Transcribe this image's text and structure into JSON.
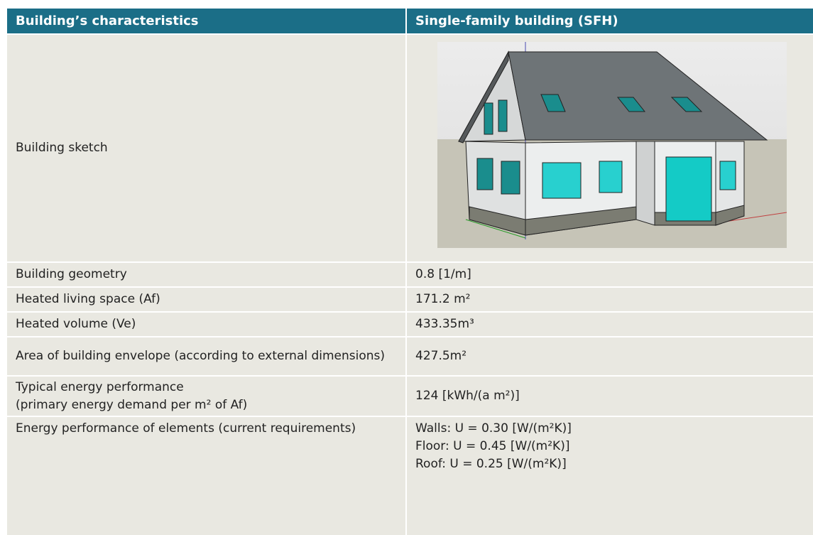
{
  "header": [
    "Building’s characteristics",
    "Single-family building (SFH)"
  ],
  "rows": [
    {
      "label": "Building sketch"
    },
    {
      "label": "Building geometry",
      "value": "0.8 [1/m]"
    },
    {
      "label": "Heated living space (Af)",
      "value": "171.2 m²"
    },
    {
      "label": "Heated volume (Ve)",
      "value": "433.35m³"
    },
    {
      "label": "Area of building envelope (according to external dimensions)",
      "value": "427.5m²"
    },
    {
      "label": [
        "Typical energy performance",
        "(primary energy demand per m² of Af)"
      ],
      "value": "124 [kWh/(a m²)]"
    },
    {
      "label": "Energy performance of elements (current requirements)",
      "value": [
        "Walls: U = 0.30 [W/(m²K)]",
        "Floor: U = 0.45 [W/(m²K)]",
        "Roof: U = 0.25 [W/(m²K)]"
      ]
    }
  ]
}
